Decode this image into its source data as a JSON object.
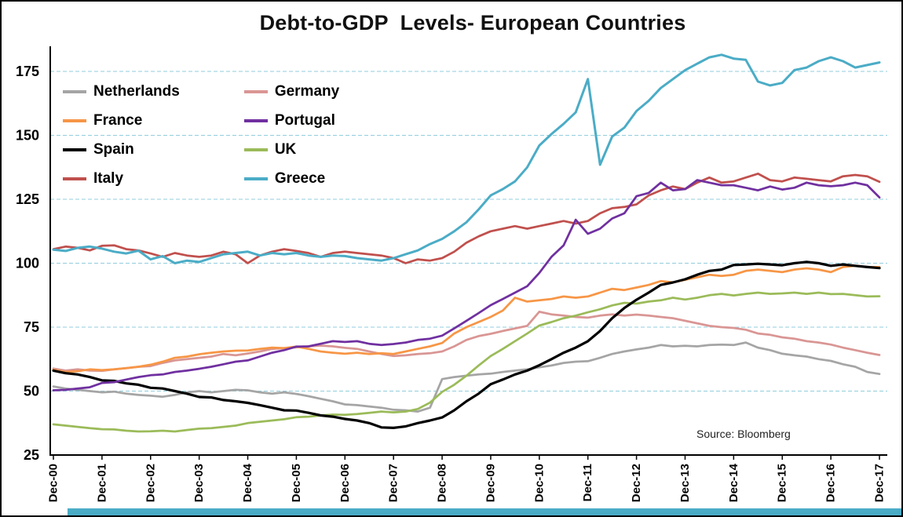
{
  "title": "Debt-to-GDP  Levels- European Countries",
  "source_label": "Source: Bloomberg",
  "chart_data": {
    "type": "line",
    "x_unit": "quarterly, Dec-00 through Dec-17 (labels shown yearly)",
    "x_tick_labels": [
      "Dec-00",
      "Dec-01",
      "Dec-02",
      "Dec-03",
      "Dec-04",
      "Dec-05",
      "Dec-06",
      "Dec-07",
      "Dec-08",
      "Dec-09",
      "Dec-10",
      "Dec-11",
      "Dec-12",
      "Dec-13",
      "Dec-14",
      "Dec-15",
      "Dec-16",
      "Dec-17"
    ],
    "yticks": [
      25,
      50,
      75,
      100,
      125,
      150,
      175
    ],
    "ylim": [
      25,
      183
    ],
    "grid": {
      "horizontal": true,
      "style": "dashed",
      "color": "#92cddc"
    },
    "legend": {
      "position": "top-left-inside",
      "order": [
        "Netherlands",
        "France",
        "Spain",
        "Italy",
        "Germany",
        "Portugal",
        "UK",
        "Greece"
      ]
    },
    "accent_bar_color": "#4bacc6",
    "series": [
      {
        "name": "Netherlands",
        "color": "#a5a5a5",
        "values": [
          51.8,
          51.0,
          50.5,
          50.0,
          49.5,
          49.8,
          49.0,
          48.5,
          48.2,
          47.8,
          48.5,
          49.5,
          50.0,
          49.5,
          50.0,
          50.5,
          50.3,
          49.5,
          49.0,
          49.5,
          48.9,
          48.0,
          47.0,
          46.0,
          44.8,
          44.5,
          44.0,
          43.5,
          42.7,
          42.5,
          42.0,
          43.5,
          54.7,
          55.5,
          56.0,
          56.5,
          56.8,
          57.5,
          58.0,
          58.5,
          59.3,
          60.0,
          61.0,
          61.5,
          61.7,
          63.0,
          64.5,
          65.5,
          66.3,
          67.0,
          68.0,
          67.5,
          67.7,
          67.5,
          68.0,
          68.2,
          68.0,
          69.0,
          67.0,
          66.0,
          64.6,
          64.0,
          63.5,
          62.5,
          61.8,
          60.5,
          59.5,
          57.5,
          56.7
        ]
      },
      {
        "name": "Germany",
        "color": "#d99694",
        "values": [
          58.8,
          58.0,
          58.5,
          58.0,
          57.9,
          58.5,
          59.0,
          59.5,
          59.8,
          61.0,
          62.0,
          62.5,
          63.0,
          63.5,
          64.5,
          64.0,
          64.7,
          65.5,
          66.5,
          66.8,
          67.1,
          67.5,
          67.8,
          67.5,
          66.9,
          66.5,
          65.5,
          64.5,
          63.7,
          64.0,
          64.5,
          64.8,
          65.5,
          67.5,
          70.0,
          71.5,
          72.4,
          73.5,
          74.5,
          75.5,
          81.0,
          80.0,
          79.5,
          79.0,
          78.7,
          79.5,
          80.0,
          79.5,
          79.9,
          79.5,
          79.0,
          78.5,
          77.5,
          76.5,
          75.5,
          75.0,
          74.7,
          74.0,
          72.5,
          72.0,
          71.0,
          70.5,
          69.5,
          69.0,
          68.2,
          67.0,
          66.0,
          65.0,
          64.1
        ]
      },
      {
        "name": "France",
        "color": "#f79646",
        "values": [
          58.3,
          57.5,
          57.8,
          58.5,
          58.2,
          58.5,
          59.0,
          59.5,
          60.3,
          61.5,
          63.0,
          63.5,
          64.4,
          65.0,
          65.5,
          65.8,
          65.9,
          66.5,
          67.0,
          66.8,
          67.4,
          66.5,
          65.5,
          65.0,
          64.6,
          65.0,
          64.5,
          64.8,
          64.5,
          65.5,
          66.5,
          67.5,
          68.8,
          72.5,
          75.0,
          77.0,
          79.0,
          81.5,
          86.5,
          85.0,
          85.5,
          86.0,
          87.0,
          86.5,
          87.0,
          88.5,
          90.0,
          89.5,
          90.5,
          91.5,
          93.0,
          92.5,
          93.5,
          94.5,
          95.5,
          95.0,
          95.5,
          97.0,
          97.5,
          97.0,
          96.5,
          97.5,
          98.0,
          97.5,
          96.5,
          98.5,
          99.0,
          98.5,
          98.5
        ]
      },
      {
        "name": "UK",
        "color": "#9bbb59",
        "values": [
          37.0,
          36.5,
          36.0,
          35.5,
          35.1,
          35.0,
          34.5,
          34.2,
          34.3,
          34.5,
          34.2,
          34.8,
          35.3,
          35.5,
          36.0,
          36.5,
          37.5,
          38.0,
          38.5,
          39.0,
          39.8,
          40.0,
          40.5,
          40.8,
          40.7,
          41.0,
          41.5,
          42.0,
          41.7,
          42.0,
          43.0,
          45.5,
          49.7,
          52.5,
          56.0,
          60.0,
          63.7,
          66.5,
          69.5,
          72.5,
          75.6,
          77.0,
          78.5,
          79.5,
          80.8,
          82.0,
          83.5,
          84.5,
          84.2,
          85.0,
          85.5,
          86.5,
          85.8,
          86.5,
          87.5,
          88.0,
          87.4,
          88.0,
          88.5,
          88.0,
          88.2,
          88.5,
          88.0,
          88.5,
          87.9,
          88.0,
          87.5,
          87.0,
          87.1
        ]
      },
      {
        "name": "Italy",
        "color": "#c0504d",
        "values": [
          105.5,
          106.5,
          106.0,
          105.0,
          106.8,
          107.0,
          105.5,
          105.0,
          103.8,
          102.5,
          104.0,
          103.0,
          102.5,
          103.0,
          104.5,
          103.5,
          100.0,
          103.0,
          104.5,
          105.5,
          104.8,
          104.0,
          102.5,
          104.0,
          104.5,
          104.0,
          103.5,
          103.0,
          102.0,
          100.0,
          101.5,
          101.0,
          102.0,
          104.5,
          108.0,
          110.5,
          112.5,
          113.5,
          114.5,
          113.5,
          114.5,
          115.5,
          116.5,
          115.5,
          116.5,
          119.5,
          121.5,
          122.0,
          123.0,
          126.5,
          128.5,
          130.0,
          129.0,
          131.5,
          133.5,
          131.5,
          132.0,
          133.5,
          135.0,
          132.5,
          132.0,
          133.5,
          133.0,
          132.5,
          132.0,
          134.0,
          134.5,
          134.0,
          131.8
        ]
      },
      {
        "name": "Spain",
        "color": "#000000",
        "width": 3.2,
        "values": [
          58.0,
          57.0,
          56.5,
          55.5,
          54.2,
          54.0,
          53.0,
          52.5,
          51.3,
          51.0,
          50.0,
          49.0,
          47.7,
          47.5,
          46.5,
          46.0,
          45.4,
          44.5,
          43.5,
          42.5,
          42.4,
          41.5,
          40.5,
          40.0,
          39.1,
          38.5,
          37.5,
          35.8,
          35.6,
          36.2,
          37.5,
          38.5,
          39.7,
          42.5,
          46.0,
          49.0,
          52.7,
          54.5,
          56.5,
          58.0,
          60.1,
          62.5,
          65.0,
          67.0,
          69.5,
          73.5,
          78.5,
          82.5,
          85.7,
          88.5,
          91.5,
          92.5,
          93.7,
          95.5,
          97.0,
          97.5,
          99.3,
          99.5,
          99.8,
          99.5,
          99.2,
          100.0,
          100.5,
          100.0,
          99.0,
          99.5,
          99.0,
          98.5,
          98.1
        ]
      },
      {
        "name": "Portugal",
        "color": "#7030a0",
        "values": [
          50.3,
          50.5,
          51.0,
          51.5,
          53.2,
          53.5,
          54.5,
          55.5,
          56.2,
          56.5,
          57.5,
          58.0,
          58.7,
          59.5,
          60.5,
          61.5,
          62.0,
          63.5,
          65.0,
          66.0,
          67.4,
          67.5,
          68.5,
          69.5,
          69.2,
          69.5,
          68.5,
          68.0,
          68.4,
          69.0,
          70.0,
          70.5,
          71.7,
          74.5,
          77.5,
          80.5,
          83.6,
          86.0,
          88.5,
          91.0,
          96.2,
          102.5,
          107.0,
          117.0,
          111.5,
          113.5,
          117.5,
          119.5,
          126.2,
          127.5,
          131.5,
          128.5,
          129.0,
          132.5,
          131.5,
          130.5,
          130.5,
          129.5,
          128.5,
          130.0,
          128.8,
          129.5,
          131.5,
          130.5,
          130.1,
          130.5,
          131.5,
          130.5,
          125.7
        ]
      },
      {
        "name": "Greece",
        "color": "#4bacc6",
        "width": 3,
        "values": [
          105.3,
          104.8,
          106.0,
          106.5,
          105.7,
          104.5,
          103.8,
          104.9,
          101.5,
          102.8,
          100.0,
          101.0,
          100.5,
          102.0,
          103.5,
          104.0,
          104.5,
          103.0,
          104.0,
          103.5,
          104.0,
          103.0,
          102.5,
          103.0,
          102.8,
          102.0,
          101.5,
          101.0,
          102.0,
          103.5,
          105.0,
          107.5,
          109.5,
          112.5,
          116.0,
          121.0,
          126.5,
          129.0,
          132.0,
          137.5,
          146.0,
          150.5,
          154.5,
          159.0,
          172.0,
          138.5,
          149.5,
          153.0,
          159.5,
          163.5,
          168.5,
          172.0,
          175.5,
          178.0,
          180.5,
          181.5,
          180.0,
          179.5,
          171.0,
          169.5,
          170.5,
          175.5,
          176.5,
          179.0,
          180.5,
          179.0,
          176.5,
          177.5,
          178.5
        ]
      }
    ]
  }
}
